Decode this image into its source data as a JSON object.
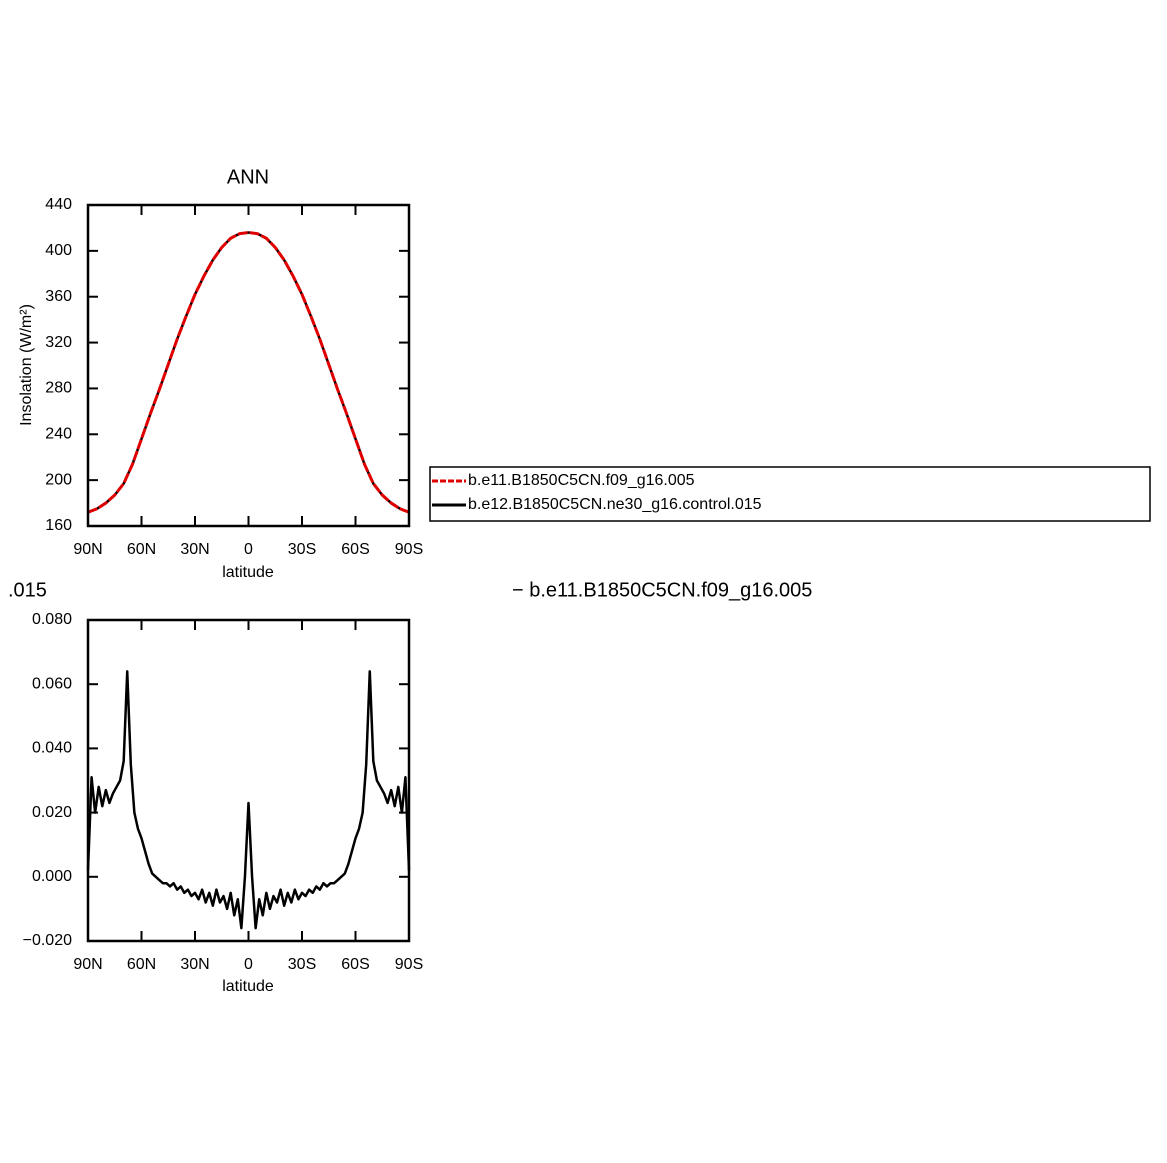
{
  "chart_data": [
    {
      "type": "line",
      "title": "ANN",
      "xlabel": "latitude",
      "ylabel": "Insolation (W/m²)",
      "x": [
        90,
        85,
        80,
        75,
        70,
        65,
        60,
        55,
        50,
        45,
        40,
        35,
        30,
        25,
        20,
        15,
        10,
        5,
        0,
        -5,
        -10,
        -15,
        -20,
        -25,
        -30,
        -35,
        -40,
        -45,
        -50,
        -55,
        -60,
        -65,
        -70,
        -75,
        -80,
        -85,
        -90
      ],
      "series": [
        {
          "name": "b.e12.B1850C5CN.ne30_g16.control.015",
          "color": "#000000",
          "dashed": false,
          "values": [
            172,
            175,
            180,
            187,
            197,
            214,
            236,
            258,
            279,
            301,
            323,
            343,
            362,
            378,
            392,
            403,
            411,
            415,
            416,
            415,
            411,
            403,
            392,
            378,
            362,
            343,
            323,
            301,
            279,
            258,
            236,
            214,
            197,
            187,
            180,
            175,
            172
          ]
        },
        {
          "name": "b.e11.B1850C5CN.f09_g16.005",
          "color": "#e00000",
          "dashed": true,
          "values": [
            172,
            175,
            180,
            187,
            197,
            214,
            236,
            258,
            279,
            301,
            323,
            343,
            362,
            378,
            392,
            403,
            411,
            415,
            416,
            415,
            411,
            403,
            392,
            378,
            362,
            343,
            323,
            301,
            279,
            258,
            236,
            214,
            197,
            187,
            180,
            175,
            172
          ]
        }
      ],
      "legend_order": [
        1,
        0
      ],
      "legend": "right",
      "xlim": [
        90,
        -90
      ],
      "xticks": [
        {
          "value": 90,
          "label": "90N"
        },
        {
          "value": 60,
          "label": "60N"
        },
        {
          "value": 30,
          "label": "30N"
        },
        0,
        {
          "value": -30,
          "label": "30S"
        },
        {
          "value": -60,
          "label": "60S"
        },
        {
          "value": -90,
          "label": "90S"
        }
      ],
      "ylim": [
        160,
        440
      ],
      "yticks": [
        160,
        200,
        240,
        280,
        320,
        360,
        400,
        440
      ]
    },
    {
      "type": "line",
      "title_left": ".015",
      "title_right": "− b.e11.B1850C5CN.f09_g16.005",
      "xlabel": "latitude",
      "x": [
        90,
        88,
        86,
        84,
        82,
        80,
        78,
        76,
        74,
        72,
        70,
        68,
        66,
        64,
        62,
        60,
        58,
        56,
        54,
        52,
        50,
        48,
        46,
        44,
        42,
        40,
        38,
        36,
        34,
        32,
        30,
        28,
        26,
        24,
        22,
        20,
        18,
        16,
        14,
        12,
        10,
        8,
        6,
        4,
        2,
        0,
        -2,
        -4,
        -6,
        -8,
        -10,
        -12,
        -14,
        -16,
        -18,
        -20,
        -22,
        -24,
        -26,
        -28,
        -30,
        -32,
        -34,
        -36,
        -38,
        -40,
        -42,
        -44,
        -46,
        -48,
        -50,
        -52,
        -54,
        -56,
        -58,
        -60,
        -62,
        -64,
        -66,
        -68,
        -70,
        -72,
        -74,
        -76,
        -78,
        -80,
        -82,
        -84,
        -86,
        -88,
        -90
      ],
      "values": [
        0.002,
        0.031,
        0.02,
        0.028,
        0.022,
        0.027,
        0.023,
        0.026,
        0.028,
        0.03,
        0.036,
        0.064,
        0.035,
        0.02,
        0.015,
        0.012,
        0.008,
        0.004,
        0.001,
        0,
        -0.001,
        -0.002,
        -0.002,
        -0.003,
        -0.002,
        -0.004,
        -0.003,
        -0.005,
        -0.004,
        -0.006,
        -0.005,
        -0.007,
        -0.004,
        -0.008,
        -0.005,
        -0.009,
        -0.004,
        -0.008,
        -0.006,
        -0.01,
        -0.005,
        -0.012,
        -0.007,
        -0.016,
        0,
        0.023,
        0,
        -0.016,
        -0.007,
        -0.012,
        -0.005,
        -0.01,
        -0.006,
        -0.008,
        -0.004,
        -0.009,
        -0.005,
        -0.008,
        -0.004,
        -0.007,
        -0.005,
        -0.006,
        -0.004,
        -0.005,
        -0.003,
        -0.004,
        -0.002,
        -0.003,
        -0.002,
        -0.002,
        -0.001,
        0,
        0.001,
        0.004,
        0.008,
        0.012,
        0.015,
        0.02,
        0.035,
        0.064,
        0.036,
        0.03,
        0.028,
        0.026,
        0.023,
        0.027,
        0.022,
        0.028,
        0.02,
        0.031,
        0.002
      ],
      "color": "#000000",
      "xlim": [
        90,
        -90
      ],
      "xticks": [
        {
          "value": 90,
          "label": "90N"
        },
        {
          "value": 60,
          "label": "60N"
        },
        {
          "value": 30,
          "label": "30N"
        },
        0,
        {
          "value": -30,
          "label": "30S"
        },
        {
          "value": -60,
          "label": "60S"
        },
        {
          "value": -90,
          "label": "90S"
        }
      ],
      "ylim": [
        -0.02,
        0.08
      ],
      "yticks": [
        {
          "value": -0.02,
          "label": "−0.020"
        },
        {
          "value": 0,
          "label": "0.000"
        },
        {
          "value": 0.02,
          "label": "0.020"
        },
        {
          "value": 0.04,
          "label": "0.040"
        },
        {
          "value": 0.06,
          "label": "0.060"
        },
        {
          "value": 0.08,
          "label": "0.080"
        }
      ]
    }
  ]
}
